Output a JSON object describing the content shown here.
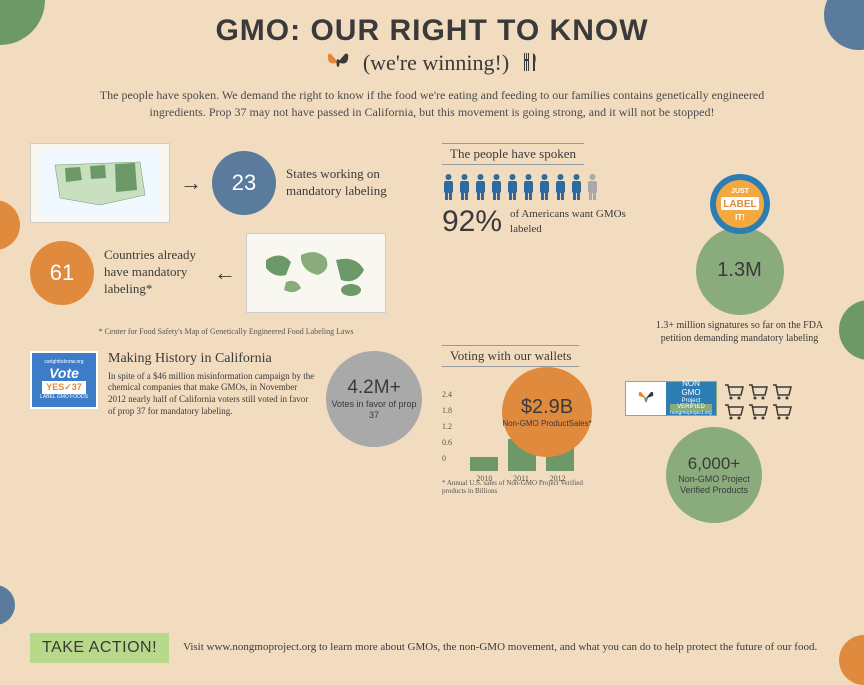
{
  "header": {
    "title": "GMO: OUR RIGHT TO KNOW",
    "subtitle": "(we're winning!)",
    "intro": "The people have spoken. We demand the right to know if the food we're eating and feeding to our families contains genetically engineered ingredients. Prop 37 may not have passed in California, but this movement is going strong, and it will not be stopped!"
  },
  "colors": {
    "bg": "#f2dcc0",
    "green": "#6d9867",
    "lightgreen": "#8aab7c",
    "blue": "#5a7b9c",
    "orange": "#e08a3e",
    "gray": "#a9a9a9",
    "text": "#3a3a3a"
  },
  "maps": {
    "stat_23": "23",
    "stat_23_label": "States working on mandatory labeling",
    "stat_61": "61",
    "stat_61_label": "Countries already have mandatory labeling*",
    "footnote": "* Center for Food Safety's Map of Genetically Engineered Food Labeling Laws"
  },
  "people": {
    "section_label": "The people have spoken",
    "total_icons": 10,
    "icons_filled": 9,
    "percent": "92%",
    "percent_label": "of Americans want GMOs labeled",
    "badge_top": "JUST",
    "badge_mid": "LABEL",
    "badge_bot": "IT!",
    "signatures": "1.3M",
    "signatures_label": "1.3+ million signatures so far on the FDA petition demanding mandatory labeling"
  },
  "california": {
    "vote_site": "carighttoknow.org",
    "vote_word": "Vote",
    "vote_yes": "YES✓37",
    "vote_sub": "LABEL GMO FOODS",
    "title": "Making History in California",
    "body": "In spite of a $46 million misinformation campaign by the chemical companies that make GMOs, in November 2012 nearly half of California voters still voted in favor of prop 37 for mandatory labeling.",
    "stat": "4.2M+",
    "stat_label": "Votes in favor of prop 37"
  },
  "wallets": {
    "section_label": "Voting with our wallets",
    "chart": {
      "type": "bar",
      "years": [
        "2010",
        "2011",
        "2012"
      ],
      "values": [
        0.5,
        1.2,
        2.9
      ],
      "ymax": 2.4,
      "yticks": [
        "2.4",
        "1.8",
        "1.2",
        "0.6",
        "0"
      ],
      "bar_color": "#6d9867"
    },
    "sales_stat": "$2.9B",
    "sales_label": "Non-GMO ProductSales*",
    "chart_footnote": "* Annual U.S. sales of Non-GMO Project Verified products in Billions",
    "verified_top": "NON",
    "verified_mid": "GMO",
    "verified_bot": "Project",
    "verified_tag": "VERIFIED",
    "verified_url": "nongmoproject.org",
    "cart_count": 6,
    "products_stat": "6,000+",
    "products_label": "Non-GMO Project Verified Products"
  },
  "footer": {
    "cta": "TAKE ACTION!",
    "text": "Visit www.nongmoproject.org to learn more about GMOs, the non-GMO movement, and what you can do to help protect the future of our food."
  }
}
